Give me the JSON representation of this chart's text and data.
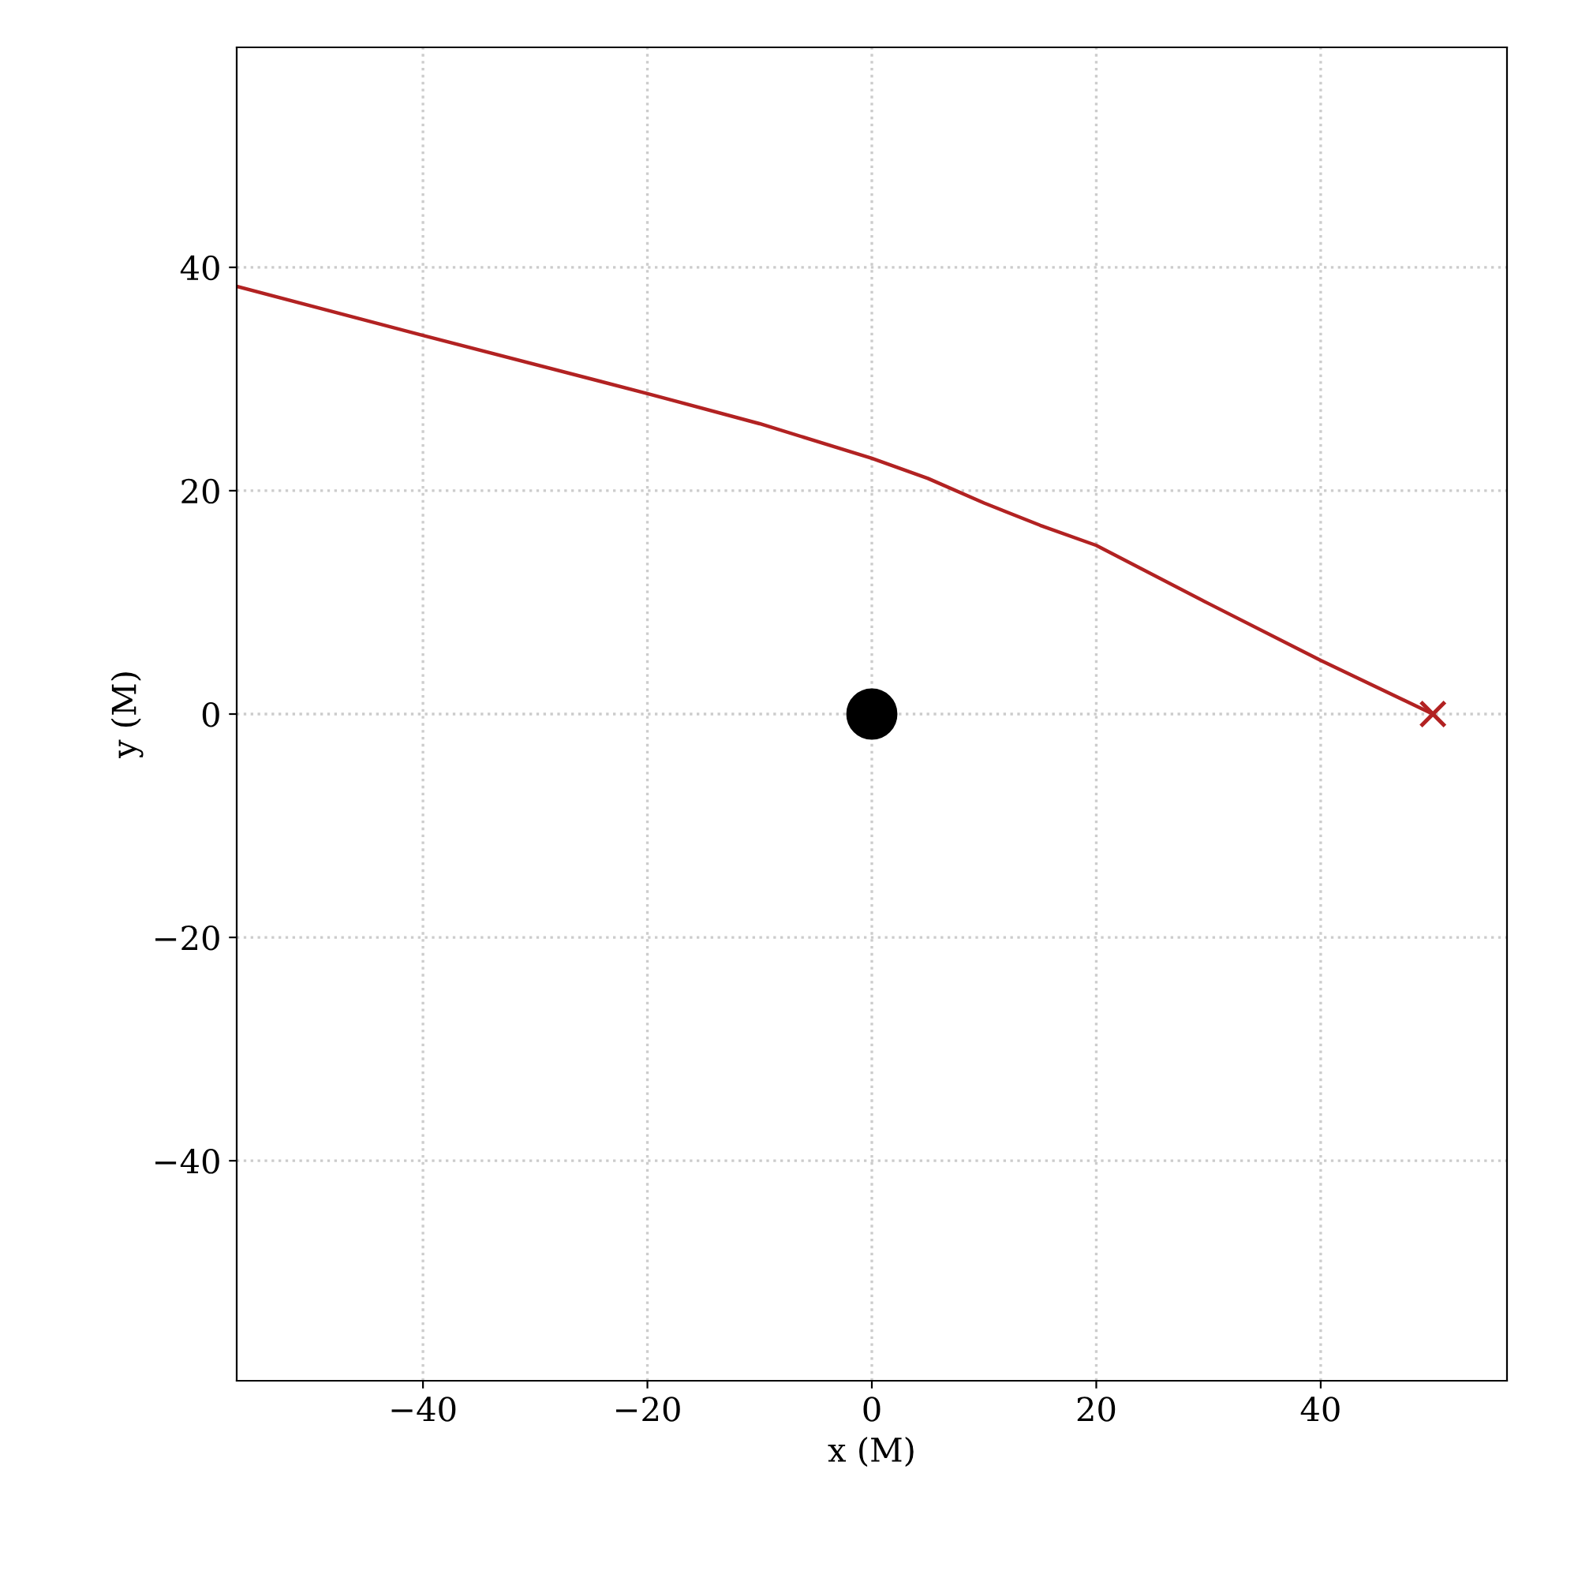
{
  "chart_data": {
    "type": "line",
    "xlabel": "x (M)",
    "ylabel": "y (M)",
    "xlim": [
      -56.6,
      56.6
    ],
    "ylim": [
      -59.7,
      59.7
    ],
    "xticks": [
      {
        "value": -40,
        "label": "−40"
      },
      {
        "value": -20,
        "label": "−20"
      },
      0,
      20,
      40
    ],
    "yticks": [
      {
        "value": -40,
        "label": "−40"
      },
      {
        "value": -20,
        "label": "−20"
      },
      0,
      20,
      40
    ],
    "grid": true,
    "legend": false,
    "series": [
      {
        "color": "#b22222",
        "marker": "none",
        "line_style": "solid",
        "x": [
          -56.6,
          -40,
          -20,
          -10,
          0,
          5,
          10,
          15,
          20,
          30,
          40,
          50
        ],
        "values": [
          38.3,
          33.9,
          28.7,
          26.0,
          22.9,
          21.1,
          18.9,
          16.9,
          15.1,
          9.9,
          4.8,
          0
        ]
      },
      {
        "type": "scatter",
        "color": "#b22222",
        "marker": "cross",
        "x": [
          50
        ],
        "values": [
          0
        ]
      },
      {
        "type": "scatter",
        "color": "#000000",
        "marker": "circle",
        "x": [
          0
        ],
        "values": [
          0
        ]
      }
    ]
  }
}
